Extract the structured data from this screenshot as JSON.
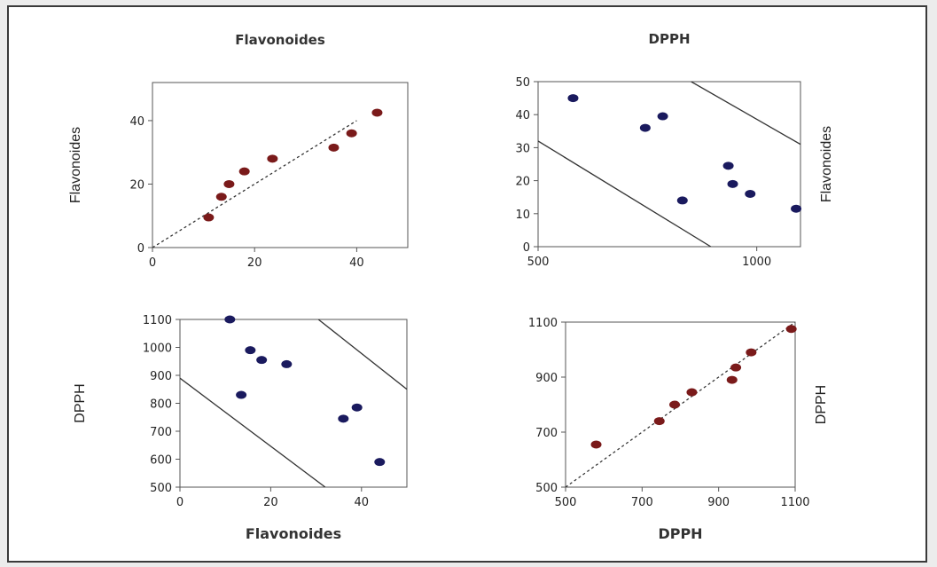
{
  "colors": {
    "red_points": "#7a1a1a",
    "blue_points": "#1a1a5e",
    "axis": "#555555",
    "line": "#333333"
  },
  "chart_data": [
    {
      "type": "scatter",
      "title": "Flavonoides",
      "xlabel": "",
      "ylabel": "Flavonoides",
      "ylabel_side": "left",
      "xlim": [
        0,
        50
      ],
      "ylim": [
        0,
        52
      ],
      "xticks": [
        0,
        20,
        40
      ],
      "yticks": [
        0,
        20,
        40
      ],
      "point_color": "red_points",
      "x": [
        11,
        13.5,
        15,
        18,
        23.5,
        35.5,
        39,
        44
      ],
      "y": [
        9.5,
        16,
        20,
        24,
        28,
        31.5,
        36,
        42.5
      ],
      "reference_lines": [
        {
          "style": "dashed",
          "points": [
            [
              0,
              0
            ],
            [
              40,
              40
            ]
          ]
        }
      ]
    },
    {
      "type": "scatter",
      "title": "DPPH",
      "xlabel": "",
      "ylabel": "Flavonoides",
      "ylabel_side": "right",
      "xlim": [
        500,
        1100
      ],
      "ylim": [
        0,
        50
      ],
      "xticks": [
        500,
        1000
      ],
      "yticks": [
        0,
        10,
        20,
        30,
        40,
        50
      ],
      "point_color": "blue_points",
      "x": [
        580,
        745,
        785,
        830,
        935,
        945,
        985,
        1090
      ],
      "y": [
        45,
        36,
        39.5,
        14,
        24.5,
        19,
        16,
        11.5
      ],
      "reference_lines": [
        {
          "style": "solid",
          "points": [
            [
              500,
              32
            ],
            [
              895,
              0
            ]
          ]
        },
        {
          "style": "solid",
          "points": [
            [
              850,
              50
            ],
            [
              1100,
              31
            ]
          ]
        }
      ]
    },
    {
      "type": "scatter",
      "title": "",
      "xlabel": "Flavonoides",
      "ylabel": "DPPH",
      "ylabel_side": "left",
      "xlim": [
        0,
        50
      ],
      "ylim": [
        500,
        1100
      ],
      "xticks": [
        0,
        20,
        40
      ],
      "yticks": [
        500,
        600,
        700,
        800,
        900,
        1000,
        1100
      ],
      "point_color": "blue_points",
      "x": [
        11,
        13.5,
        15.5,
        18,
        23.5,
        36,
        39,
        44
      ],
      "y": [
        1100,
        830,
        990,
        955,
        940,
        745,
        785,
        590
      ],
      "reference_lines": [
        {
          "style": "solid",
          "points": [
            [
              0,
              890
            ],
            [
              32,
              500
            ]
          ]
        },
        {
          "style": "solid",
          "points": [
            [
              30.5,
              1100
            ],
            [
              50,
              850
            ]
          ]
        }
      ]
    },
    {
      "type": "scatter",
      "title": "",
      "xlabel": "DPPH",
      "ylabel": "DPPH",
      "ylabel_side": "right",
      "xlim": [
        500,
        1100
      ],
      "ylim": [
        500,
        1100
      ],
      "xticks": [
        500,
        700,
        900,
        1100
      ],
      "yticks": [
        500,
        700,
        900,
        1100
      ],
      "point_color": "red_points",
      "x": [
        580,
        745,
        785,
        830,
        935,
        945,
        985,
        1090
      ],
      "y": [
        655,
        740,
        800,
        845,
        890,
        935,
        990,
        1075
      ],
      "reference_lines": [
        {
          "style": "dashed",
          "points": [
            [
              500,
              500
            ],
            [
              1100,
              1100
            ]
          ]
        }
      ]
    }
  ]
}
